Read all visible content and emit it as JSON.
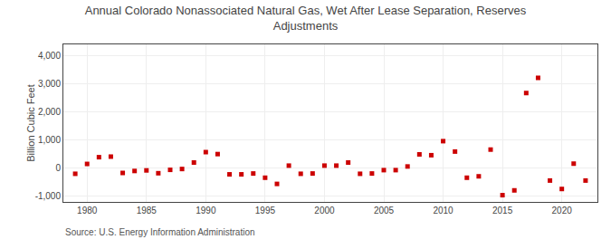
{
  "chart_data": {
    "type": "scatter",
    "title": "Annual Colorado Nonassociated Natural Gas, Wet After Lease Separation, Reserves\nAdjustments",
    "ylabel": "Billion Cubic Feet",
    "source": "Source: U.S. Energy Information Administration",
    "color": "#cc0000",
    "marker": "square",
    "x": [
      1979,
      1980,
      1981,
      1982,
      1983,
      1984,
      1985,
      1986,
      1987,
      1988,
      1989,
      1990,
      1991,
      1992,
      1993,
      1994,
      1995,
      1996,
      1997,
      1998,
      1999,
      2000,
      2001,
      2002,
      2003,
      2004,
      2005,
      2006,
      2007,
      2008,
      2009,
      2010,
      2011,
      2012,
      2013,
      2014,
      2015,
      2016,
      2017,
      2018,
      2019,
      2020,
      2021,
      2022
    ],
    "values": [
      -200,
      150,
      390,
      410,
      -170,
      -100,
      -80,
      -180,
      -60,
      -30,
      200,
      570,
      500,
      -220,
      -220,
      -190,
      -340,
      -560,
      90,
      -200,
      -190,
      90,
      90,
      200,
      -200,
      -190,
      -70,
      -70,
      60,
      490,
      460,
      960,
      590,
      -340,
      -290,
      660,
      -960,
      -790,
      2670,
      3210,
      -440,
      -740,
      160,
      -440
    ],
    "xlim": [
      1978,
      2023
    ],
    "ylim": [
      -1200,
      4400
    ],
    "xticks": [
      1980,
      1985,
      1990,
      1995,
      2000,
      2005,
      2010,
      2015,
      2020
    ],
    "yticks": [
      {
        "value": -1000,
        "label": "-1,000"
      },
      0,
      {
        "value": 1000,
        "label": "1,000"
      },
      {
        "value": 2000,
        "label": "2,000"
      },
      {
        "value": 3000,
        "label": "3,000"
      },
      {
        "value": 4000,
        "label": "4,000"
      }
    ],
    "grid": true
  }
}
